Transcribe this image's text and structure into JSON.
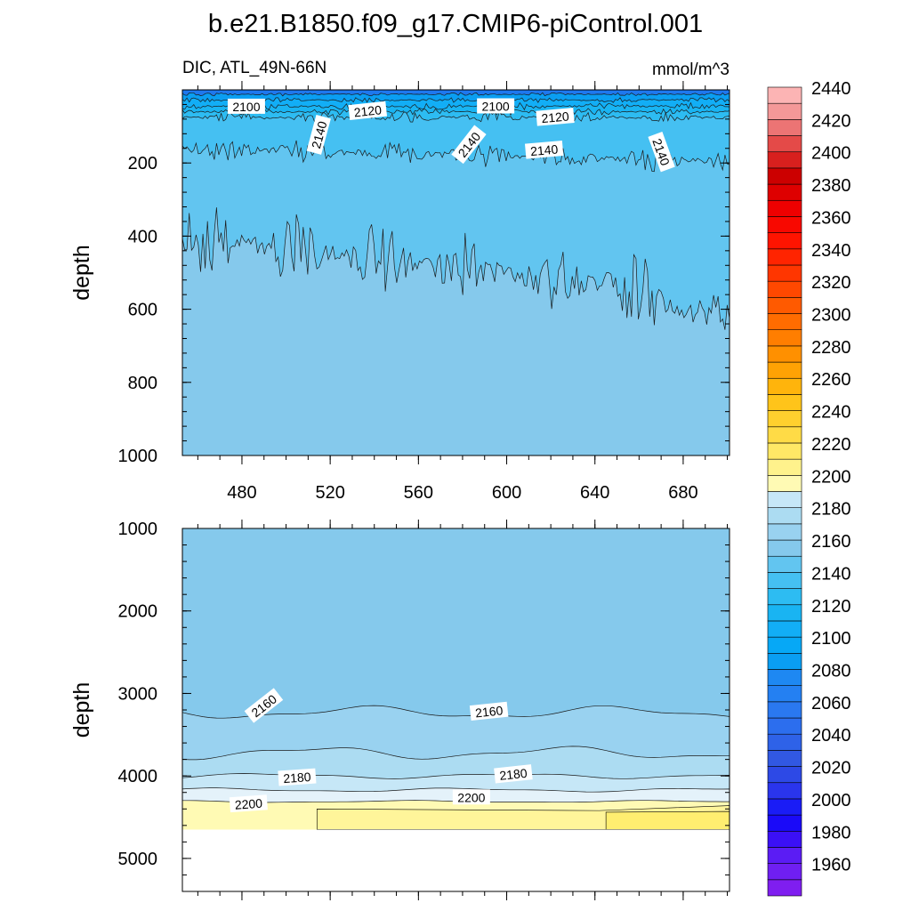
{
  "figure": {
    "title": "b.e21.B1850.f09_g17.CMIP6-piControl.001",
    "variable_label": "DIC, ATL_49N-66N",
    "units_label": "mmol/m^3"
  },
  "chart_data": [
    {
      "type": "heatmap",
      "panel": "upper",
      "title": "DIC, ATL_49N-66N",
      "units": "mmol/m^3",
      "xlabel": "",
      "ylabel": "depth",
      "xlim": [
        453,
        701
      ],
      "ylim": [
        1000,
        0
      ],
      "y_inverted": true,
      "xticks": [
        480,
        520,
        560,
        600,
        640,
        680
      ],
      "xtick_labels": [
        "480",
        "520",
        "560",
        "600",
        "640",
        "680"
      ],
      "yticks": [
        200,
        400,
        600,
        800,
        1000
      ],
      "ytick_labels": [
        "200",
        "400",
        "600",
        "800",
        "1000"
      ],
      "contour_interval": 10,
      "bands": [
        {
          "range": [
            2080,
            2090
          ],
          "color": "#1e78ee",
          "depth_top": 0,
          "depth_bottom_mean": 12
        },
        {
          "range": [
            2090,
            2100
          ],
          "color": "#0a9ef2",
          "depth_top": 12,
          "depth_bottom_mean": 28
        },
        {
          "range": [
            2100,
            2110
          ],
          "color": "#12aef6",
          "depth_top": 28,
          "depth_bottom_mean": 45
        },
        {
          "range": [
            2110,
            2120
          ],
          "color": "#19b4f2",
          "depth_top": 45,
          "depth_bottom_mean": 60
        },
        {
          "range": [
            2120,
            2130
          ],
          "color": "#2dbcf2",
          "depth_top": 60,
          "depth_bottom_mean": 75
        },
        {
          "range": [
            2130,
            2140
          ],
          "color": "#45c0f2",
          "depth_top": 75,
          "depth_bottom_mean": 160
        },
        {
          "range": [
            2140,
            2150
          ],
          "color": "#62c5f0",
          "depth_top": 160,
          "depth_bottom_mean": 400
        },
        {
          "range": [
            2150,
            2160
          ],
          "color": "#85c9ec",
          "depth_top": 400,
          "depth_bottom": 1000
        }
      ],
      "contour_labels": [
        {
          "text": "2100",
          "x": 482,
          "depth": 46,
          "angle": 0
        },
        {
          "text": "2120",
          "x": 537,
          "depth": 58,
          "angle": -6
        },
        {
          "text": "2140",
          "x": 515,
          "depth": 123,
          "angle": -75
        },
        {
          "text": "2100",
          "x": 595,
          "depth": 45,
          "angle": 0
        },
        {
          "text": "2120",
          "x": 622,
          "depth": 75,
          "angle": -5
        },
        {
          "text": "2140",
          "x": 583,
          "depth": 150,
          "angle": -52
        },
        {
          "text": "2140",
          "x": 617,
          "depth": 165,
          "angle": -5
        },
        {
          "text": "2140",
          "x": 670,
          "depth": 170,
          "angle": 70
        }
      ]
    },
    {
      "type": "heatmap",
      "panel": "lower",
      "title": "",
      "units": "mmol/m^3",
      "xlabel": "",
      "ylabel": "depth",
      "xlim": [
        453,
        701
      ],
      "ylim": [
        5400,
        1000
      ],
      "y_inverted": true,
      "yticks": [
        1000,
        2000,
        3000,
        4000,
        5000
      ],
      "ytick_labels": [
        "1000",
        "2000",
        "3000",
        "4000",
        "5000"
      ],
      "bottom_of_data": 4650,
      "bands": [
        {
          "range": [
            2150,
            2160
          ],
          "color": "#85c9ec",
          "depth_top": 1000,
          "depth_bottom_mean": 3230
        },
        {
          "range": [
            2160,
            2170
          ],
          "color": "#99d2f0",
          "depth_top": 3230,
          "depth_bottom_mean": 3720
        },
        {
          "range": [
            2170,
            2180
          ],
          "color": "#acdcf2",
          "depth_top": 3720,
          "depth_bottom_mean": 4000
        },
        {
          "range": [
            2180,
            2190
          ],
          "color": "#c6e7f7",
          "depth_top": 4000,
          "depth_bottom_mean": 4170
        },
        {
          "range": [
            2190,
            2200
          ],
          "color": "#e4f2fa",
          "depth_top": 4170,
          "depth_bottom_mean": 4310
        },
        {
          "range": [
            2200,
            2210
          ],
          "color": "#fffab4",
          "depth_top": 4310,
          "depth_bottom": 4650
        },
        {
          "range": [
            2210,
            2220
          ],
          "color": "#fff28c",
          "depth_top": 4400,
          "depth_bottom": 4650
        }
      ],
      "contour_labels": [
        {
          "text": "2160",
          "x": 490,
          "depth": 3150,
          "angle": -38
        },
        {
          "text": "2160",
          "x": 592,
          "depth": 3220,
          "angle": -6
        },
        {
          "text": "2180",
          "x": 505,
          "depth": 4020,
          "angle": -4
        },
        {
          "text": "2180",
          "x": 603,
          "depth": 3980,
          "angle": -6
        },
        {
          "text": "2200",
          "x": 483,
          "depth": 4340,
          "angle": -4
        },
        {
          "text": "2200",
          "x": 584,
          "depth": 4260,
          "angle": 0
        }
      ]
    }
  ],
  "colorbar": {
    "tick_labels": [
      "1960",
      "1980",
      "2000",
      "2020",
      "2040",
      "2060",
      "2080",
      "2100",
      "2120",
      "2140",
      "2160",
      "2180",
      "2200",
      "2220",
      "2240",
      "2260",
      "2280",
      "2300",
      "2320",
      "2340",
      "2360",
      "2380",
      "2400",
      "2420",
      "2440"
    ],
    "boxes": [
      {
        "level": 1950,
        "color": "#7f1ef0"
      },
      {
        "level": 1960,
        "color": "#6f1ff2"
      },
      {
        "level": 1970,
        "color": "#5b1cf4"
      },
      {
        "level": 1980,
        "color": "#3b10f6"
      },
      {
        "level": 1990,
        "color": "#1a0af8"
      },
      {
        "level": 2000,
        "color": "#1a1cf6"
      },
      {
        "level": 2010,
        "color": "#2a35ec"
      },
      {
        "level": 2020,
        "color": "#2d49e6"
      },
      {
        "level": 2030,
        "color": "#3158e2"
      },
      {
        "level": 2040,
        "color": "#2e62e8"
      },
      {
        "level": 2050,
        "color": "#2c6eee"
      },
      {
        "level": 2060,
        "color": "#2a78f0"
      },
      {
        "level": 2070,
        "color": "#2480f2"
      },
      {
        "level": 2080,
        "color": "#1e88f2"
      },
      {
        "level": 2090,
        "color": "#0a9ef2"
      },
      {
        "level": 2100,
        "color": "#06a8f6"
      },
      {
        "level": 2110,
        "color": "#12aef6"
      },
      {
        "level": 2120,
        "color": "#19b4f2"
      },
      {
        "level": 2130,
        "color": "#2dbcf2"
      },
      {
        "level": 2140,
        "color": "#45c0f2"
      },
      {
        "level": 2150,
        "color": "#62c5f0"
      },
      {
        "level": 2160,
        "color": "#85c9ec"
      },
      {
        "level": 2170,
        "color": "#99d2f0"
      },
      {
        "level": 2180,
        "color": "#acdcf2"
      },
      {
        "level": 2190,
        "color": "#c6e7f7"
      },
      {
        "level": 2200,
        "color": "#fffab4"
      },
      {
        "level": 2210,
        "color": "#fff28c"
      },
      {
        "level": 2220,
        "color": "#ffe866"
      },
      {
        "level": 2230,
        "color": "#ffdb46"
      },
      {
        "level": 2240,
        "color": "#ffd02e"
      },
      {
        "level": 2250,
        "color": "#ffc41a"
      },
      {
        "level": 2260,
        "color": "#ffb40c"
      },
      {
        "level": 2270,
        "color": "#ffa204"
      },
      {
        "level": 2280,
        "color": "#ff9000"
      },
      {
        "level": 2290,
        "color": "#ff7e00"
      },
      {
        "level": 2300,
        "color": "#ff6c00"
      },
      {
        "level": 2310,
        "color": "#ff5a00"
      },
      {
        "level": 2320,
        "color": "#ff4800"
      },
      {
        "level": 2330,
        "color": "#ff3600"
      },
      {
        "level": 2340,
        "color": "#ff2400"
      },
      {
        "level": 2350,
        "color": "#ff1400"
      },
      {
        "level": 2360,
        "color": "#f80800"
      },
      {
        "level": 2370,
        "color": "#ee0000"
      },
      {
        "level": 2380,
        "color": "#de0000"
      },
      {
        "level": 2390,
        "color": "#cc0000"
      },
      {
        "level": 2400,
        "color": "#d8201e"
      },
      {
        "level": 2410,
        "color": "#e44a48"
      },
      {
        "level": 2420,
        "color": "#ec7474"
      },
      {
        "level": 2430,
        "color": "#f49898"
      },
      {
        "level": 2440,
        "color": "#fcb4b4"
      }
    ]
  }
}
